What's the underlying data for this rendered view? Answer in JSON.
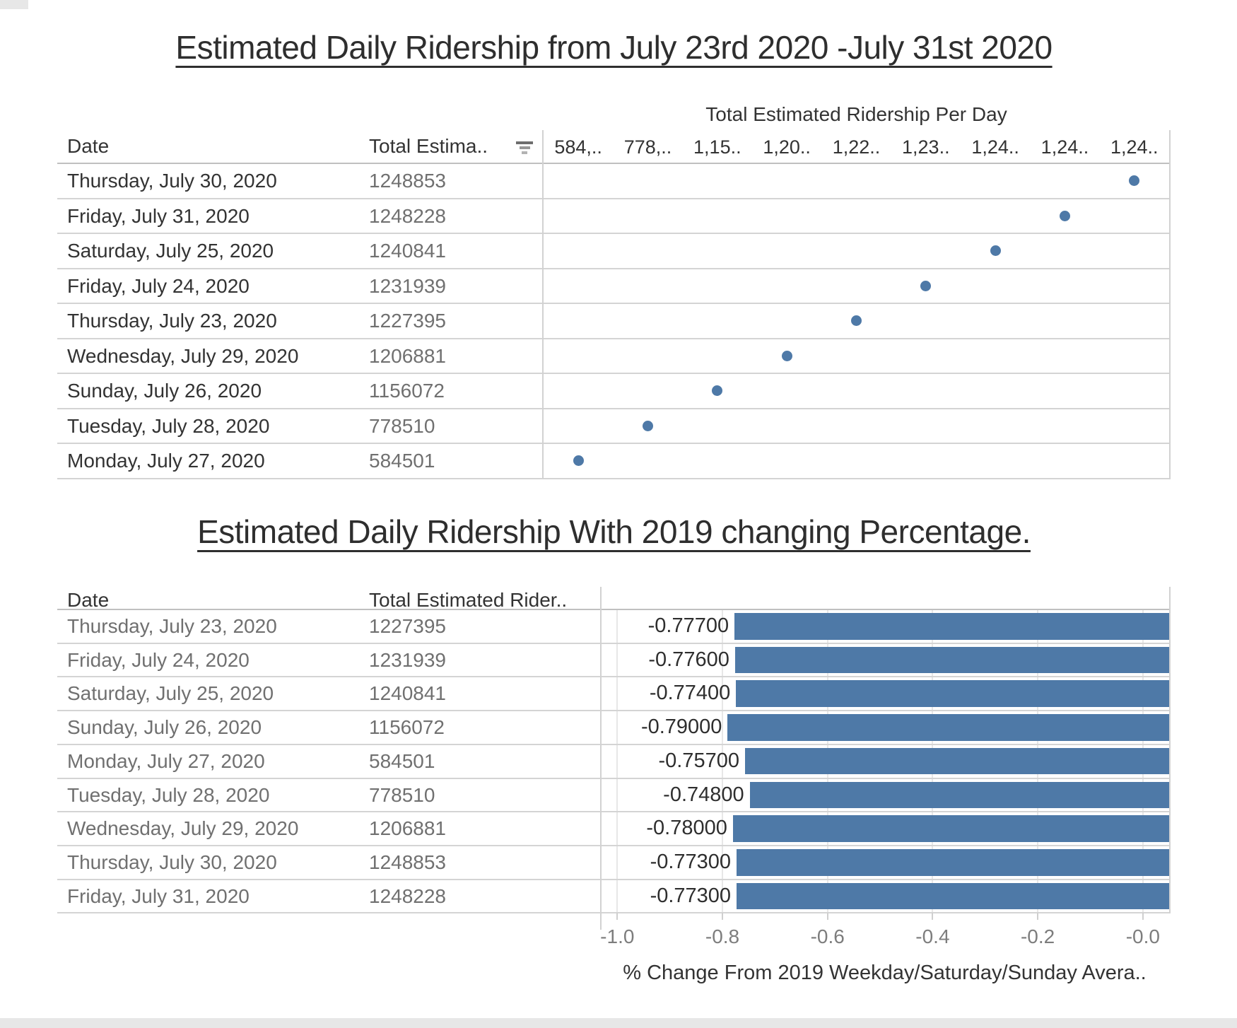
{
  "colors": {
    "mark_blue": "#4e79a7"
  },
  "chart1": {
    "title": "Estimated Daily Ridership from July 23rd 2020 -July 31st 2020",
    "columns": {
      "date": "Date",
      "total": "Total Estima.."
    },
    "sort_icon": "sort-descending",
    "plot_title": "Total Estimated Ridership Per Day",
    "bucket_labels": [
      "584,..",
      "778,..",
      "1,15..",
      "1,20..",
      "1,22..",
      "1,23..",
      "1,24..",
      "1,24..",
      "1,24.."
    ],
    "rows": [
      {
        "date": "Thursday, July 30, 2020",
        "total": "1248853",
        "col": 8
      },
      {
        "date": "Friday, July 31, 2020",
        "total": "1248228",
        "col": 7
      },
      {
        "date": "Saturday, July 25, 2020",
        "total": "1240841",
        "col": 6
      },
      {
        "date": "Friday, July 24, 2020",
        "total": "1231939",
        "col": 5
      },
      {
        "date": "Thursday, July 23, 2020",
        "total": "1227395",
        "col": 4
      },
      {
        "date": "Wednesday, July 29, 2020",
        "total": "1206881",
        "col": 3
      },
      {
        "date": "Sunday, July 26, 2020",
        "total": "1156072",
        "col": 2
      },
      {
        "date": "Tuesday, July 28, 2020",
        "total": "778510",
        "col": 1
      },
      {
        "date": "Monday, July 27, 2020",
        "total": "584501",
        "col": 0
      }
    ]
  },
  "chart2": {
    "title": "Estimated Daily Ridership With 2019 changing Percentage.",
    "columns": {
      "date": "Date",
      "total": "Total Estimated Rider.."
    },
    "rows": [
      {
        "date": "Thursday, July 23, 2020",
        "total": "1227395",
        "change_label": "-0.77700",
        "change_value": -0.777
      },
      {
        "date": "Friday, July 24, 2020",
        "total": "1231939",
        "change_label": "-0.77600",
        "change_value": -0.776
      },
      {
        "date": "Saturday, July 25, 2020",
        "total": "1240841",
        "change_label": "-0.77400",
        "change_value": -0.774
      },
      {
        "date": "Sunday, July 26, 2020",
        "total": "1156072",
        "change_label": "-0.79000",
        "change_value": -0.79
      },
      {
        "date": "Monday, July 27, 2020",
        "total": "584501",
        "change_label": "-0.75700",
        "change_value": -0.757
      },
      {
        "date": "Tuesday, July 28, 2020",
        "total": "778510",
        "change_label": "-0.74800",
        "change_value": -0.748
      },
      {
        "date": "Wednesday, July 29, 2020",
        "total": "1206881",
        "change_label": "-0.78000",
        "change_value": -0.78
      },
      {
        "date": "Thursday, July 30, 2020",
        "total": "1248853",
        "change_label": "-0.77300",
        "change_value": -0.773
      },
      {
        "date": "Friday, July 31, 2020",
        "total": "1248228",
        "change_label": "-0.77300",
        "change_value": -0.773
      }
    ],
    "x_axis": {
      "tick_labels": [
        "-1.0",
        "-0.8",
        "-0.6",
        "-0.4",
        "-0.2",
        "-0.0"
      ],
      "tick_values": [
        -1.0,
        -0.8,
        -0.6,
        -0.4,
        -0.2,
        0.0
      ],
      "title": "% Change From 2019 Weekday/Saturday/Sunday Avera.."
    }
  },
  "chart_data": [
    {
      "type": "scatter",
      "title": "Estimated Daily Ridership from July 23rd 2020 -July 31st 2020",
      "subtitle": "Total Estimated Ridership Per Day",
      "sort": "descending by total estimated ridership",
      "categories": [
        "Thursday, July 30, 2020",
        "Friday, July 31, 2020",
        "Saturday, July 25, 2020",
        "Friday, July 24, 2020",
        "Thursday, July 23, 2020",
        "Wednesday, July 29, 2020",
        "Sunday, July 26, 2020",
        "Tuesday, July 28, 2020",
        "Monday, July 27, 2020"
      ],
      "values": [
        1248853,
        1248228,
        1240841,
        1231939,
        1227395,
        1206881,
        1156072,
        778510,
        584501
      ],
      "x_tick_labels": [
        "584,..",
        "778,..",
        "1,15..",
        "1,20..",
        "1,22..",
        "1,23..",
        "1,24..",
        "1,24..",
        "1,24.."
      ],
      "legend": "none",
      "grid": "horizontal row separators only"
    },
    {
      "type": "bar",
      "title": "Estimated Daily Ridership With 2019 changing Percentage.",
      "orientation": "horizontal",
      "categories": [
        "Thursday, July 23, 2020",
        "Friday, July 24, 2020",
        "Saturday, July 25, 2020",
        "Sunday, July 26, 2020",
        "Monday, July 27, 2020",
        "Tuesday, July 28, 2020",
        "Wednesday, July 29, 2020",
        "Thursday, July 30, 2020",
        "Friday, July 31, 2020"
      ],
      "series": [
        {
          "name": "Total Estimated Ridership",
          "values": [
            1227395,
            1231939,
            1240841,
            1156072,
            584501,
            778510,
            1206881,
            1248853,
            1248228
          ]
        },
        {
          "name": "% Change From 2019 Weekday/Saturday/Sunday Average",
          "values": [
            -0.777,
            -0.776,
            -0.774,
            -0.79,
            -0.757,
            -0.748,
            -0.78,
            -0.773,
            -0.773
          ]
        }
      ],
      "xlabel": "% Change From 2019 Weekday/Saturday/Sunday Avera..",
      "xlim": [
        -1.0,
        0.0
      ],
      "x_ticks": [
        -1.0,
        -0.8,
        -0.6,
        -0.4,
        -0.2,
        0.0
      ],
      "bar_color": "#4e79a7",
      "legend": "none",
      "grid": "vertical gridlines at x ticks"
    }
  ]
}
